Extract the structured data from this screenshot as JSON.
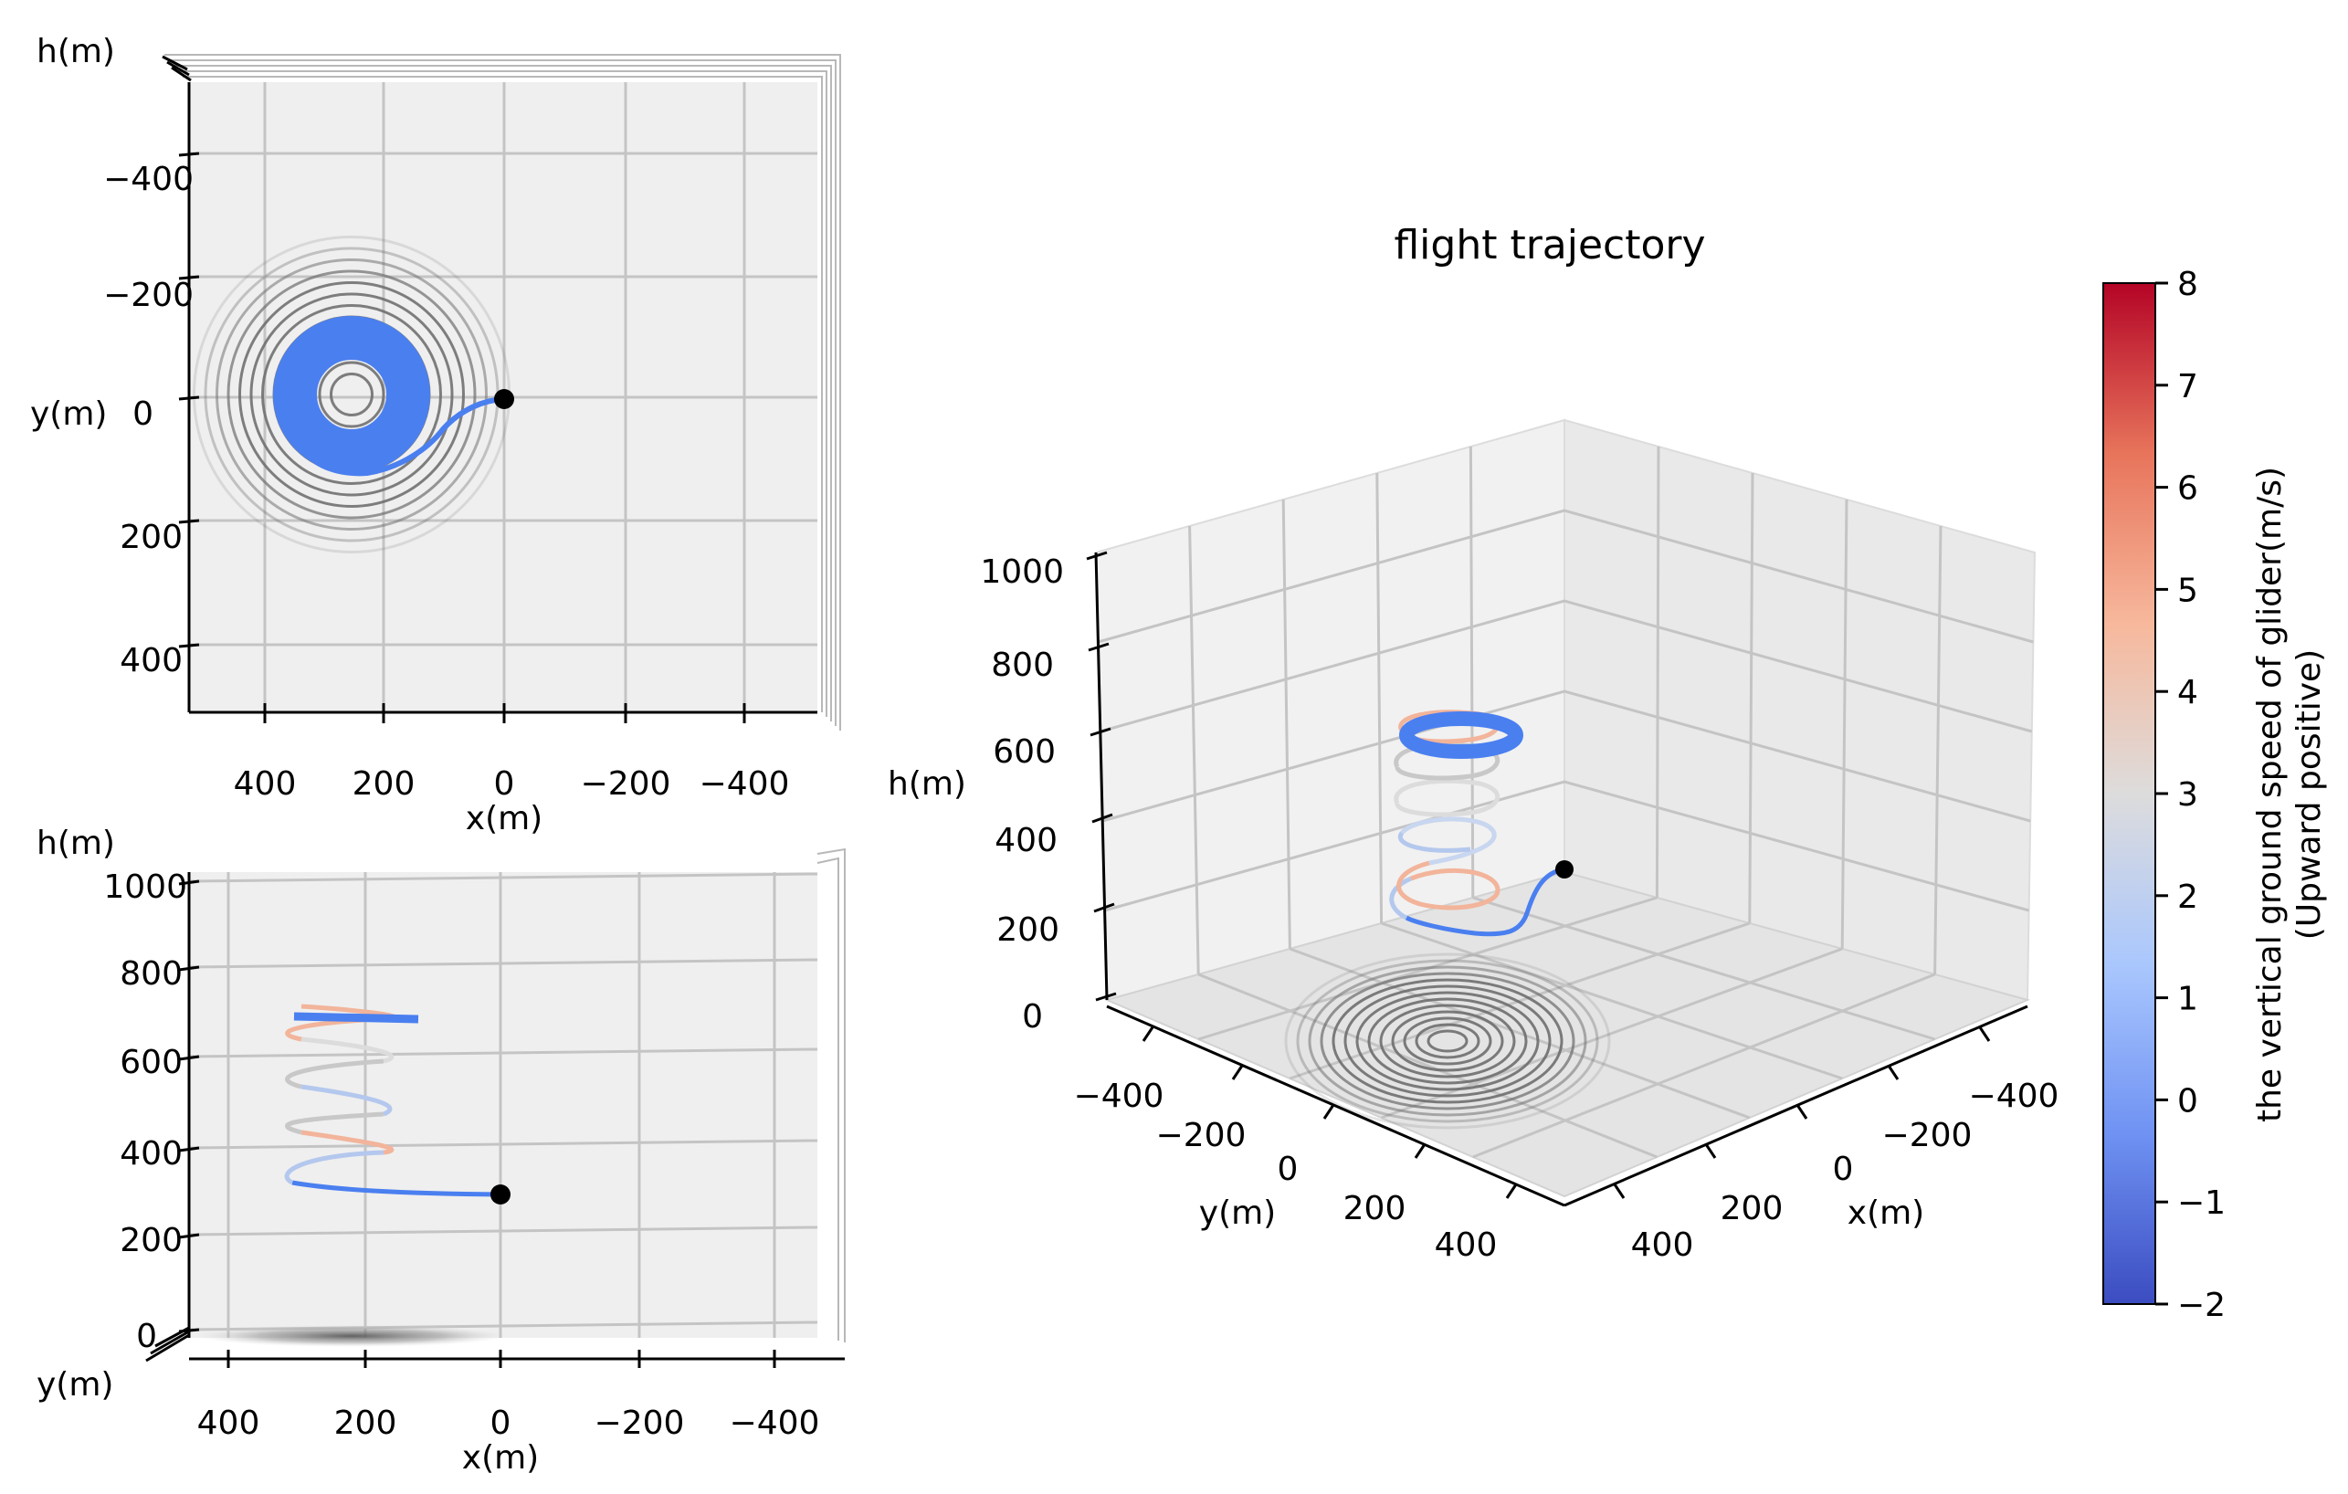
{
  "chart_data": [
    {
      "type": "line",
      "view": "top",
      "title": "",
      "xlabel": "x(m)",
      "ylabel": "y(m)",
      "zlabel": "h(m)",
      "x_ticks": [
        "400",
        "200",
        "0",
        "−200",
        "−400"
      ],
      "y_ticks": [
        "−400",
        "−200",
        "0",
        "200",
        "400"
      ],
      "xlim": [
        500,
        -500
      ],
      "ylim": [
        -500,
        500
      ],
      "grid": true,
      "thermal_center": [
        250,
        0
      ],
      "end_point": [
        0,
        0
      ],
      "colors": {
        "trajectory": "#4a7ff0",
        "contour": "#6e6e6e",
        "end_point": "#000000"
      }
    },
    {
      "type": "line",
      "view": "side",
      "title": "",
      "xlabel": "x(m)",
      "ylabel": "y(m)",
      "zlabel": "h(m)",
      "x_ticks": [
        "400",
        "200",
        "0",
        "−200",
        "−400"
      ],
      "h_ticks": [
        "0",
        "200",
        "400",
        "600",
        "800",
        "1000"
      ],
      "xlim": [
        500,
        -500
      ],
      "hlim": [
        0,
        1000
      ],
      "grid": true,
      "end_point": [
        0,
        280
      ],
      "top_circle_height": 680,
      "colors": {
        "trajectory": "#4a7ff0",
        "warm": "#f2b49a",
        "neutral": "#c8c8c8",
        "cool": "#b4c8ee",
        "end_point": "#000000"
      }
    },
    {
      "type": "line",
      "view": "3d",
      "title": "flight trajectory",
      "xlabel": "x(m)",
      "ylabel": "y(m)",
      "zlabel": "h(m)",
      "x_ticks": [
        "400",
        "200",
        "0",
        "−200",
        "−400"
      ],
      "y_ticks": [
        "−400",
        "−200",
        "0",
        "200",
        "400"
      ],
      "h_ticks": [
        "0",
        "200",
        "400",
        "600",
        "800",
        "1000"
      ],
      "hlim": [
        0,
        1000
      ],
      "grid": true,
      "end_point": [
        0,
        0,
        280
      ],
      "top_circle_height": 680
    }
  ],
  "colorbar": {
    "label_line1": "the vertical ground speed of glider(m/s)",
    "label_line2": "(Upward positive)",
    "min": -2,
    "max": 8,
    "ticks": [
      "−2",
      "−1",
      "0",
      "1",
      "2",
      "3",
      "4",
      "5",
      "6",
      "7",
      "8"
    ],
    "colormap": "coolwarm",
    "stops": [
      "#3b4cc0",
      "#6f92f3",
      "#aac7fd",
      "#dddcdc",
      "#f7b89c",
      "#e7745b",
      "#b40426"
    ]
  }
}
